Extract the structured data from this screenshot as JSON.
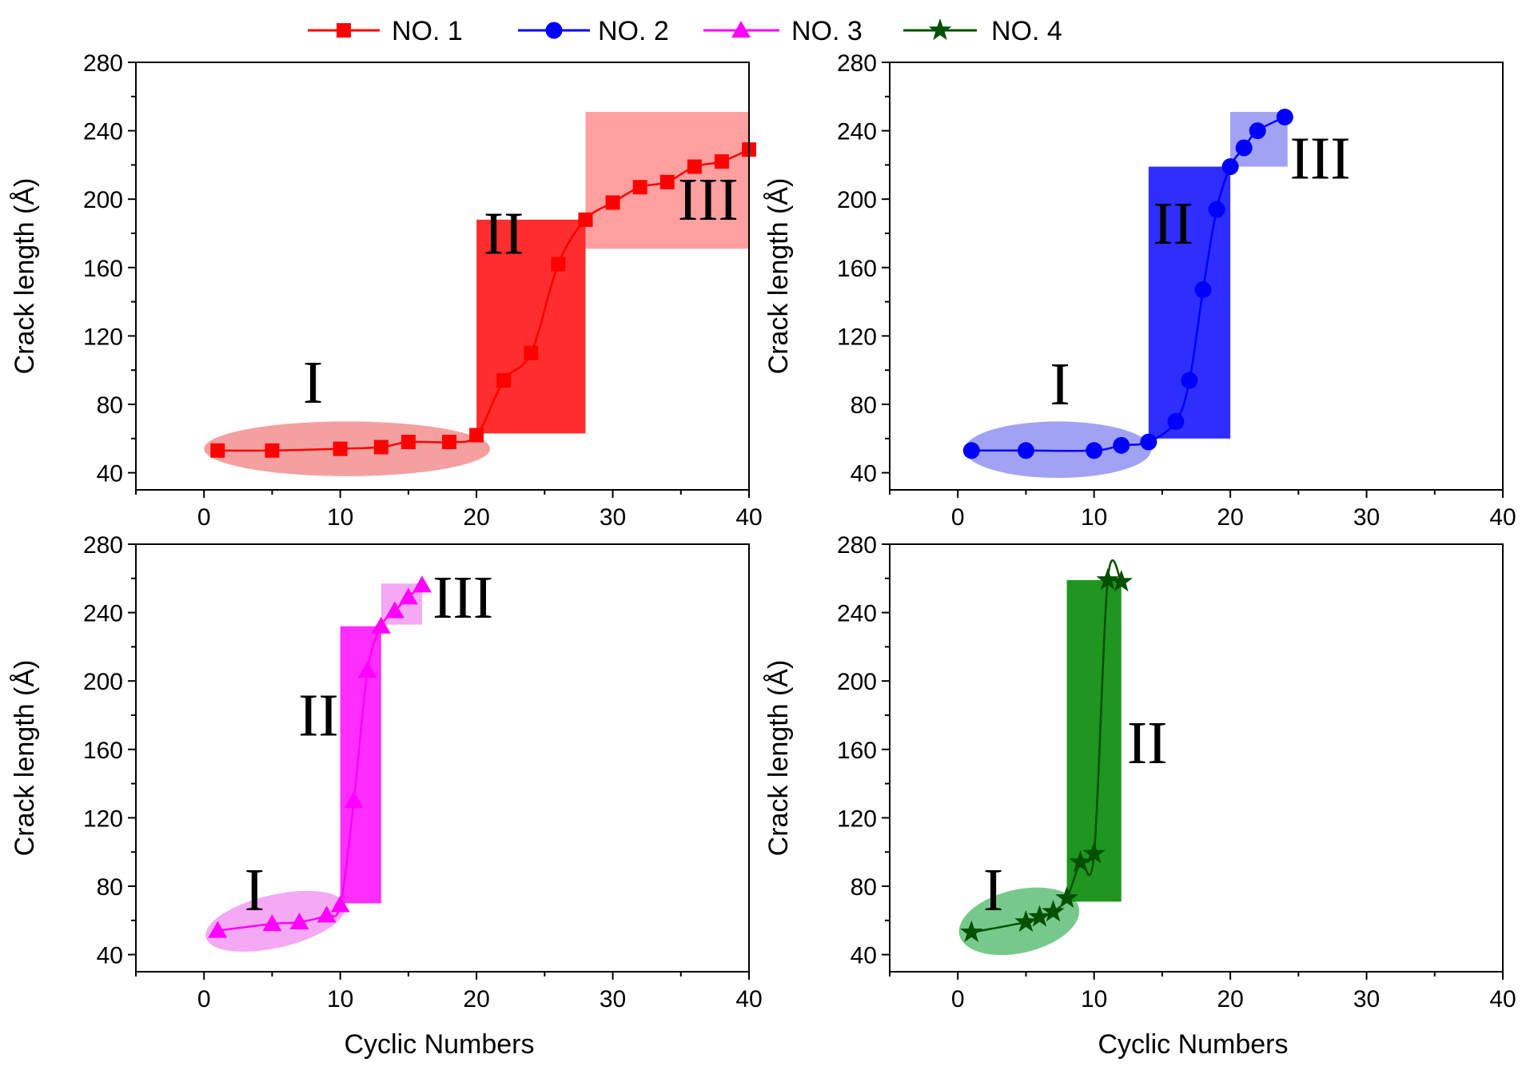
{
  "chart_data": [
    {
      "type": "line",
      "series_name": "NO. 1",
      "color": "#ff0000",
      "marker": "square",
      "x": [
        1,
        5,
        10,
        13,
        15,
        18,
        20,
        22,
        24,
        26,
        28,
        30,
        32,
        34,
        36,
        38,
        40
      ],
      "y": [
        53,
        53,
        54,
        55,
        58,
        58,
        62,
        94,
        110,
        162,
        188,
        198,
        207,
        210,
        219,
        222,
        229
      ],
      "xlabel": "",
      "ylabel": "Crack length (Å)",
      "xlim": [
        -5,
        40
      ],
      "ylim": [
        30,
        280
      ],
      "xticks": [
        0,
        10,
        20,
        30,
        40
      ],
      "yticks": [
        40,
        80,
        120,
        160,
        200,
        240,
        280
      ],
      "regions": [
        {
          "label": "I",
          "shape": "ellipse",
          "x_range": [
            0,
            21
          ],
          "y_range": [
            38,
            70
          ],
          "color": "#f08080",
          "opacity": 0.75
        },
        {
          "label": "II",
          "shape": "rect",
          "x_range": [
            20,
            28
          ],
          "y_range": [
            63,
            188
          ],
          "color": "#ff0000",
          "opacity": 0.82
        },
        {
          "label": "III",
          "shape": "rect",
          "x_range": [
            28,
            40
          ],
          "y_range": [
            171,
            251
          ],
          "color": "#ff6b6b",
          "opacity": 0.65
        }
      ]
    },
    {
      "type": "line",
      "series_name": "NO. 2",
      "color": "#0000ff",
      "marker": "circle",
      "x": [
        1,
        5,
        10,
        12,
        14,
        16,
        17,
        18,
        19,
        20,
        21,
        22,
        24
      ],
      "y": [
        53,
        53,
        53,
        56,
        58,
        70,
        94,
        147,
        194,
        219,
        230,
        240,
        248
      ],
      "xlabel": "",
      "ylabel": "Crack length (Å)",
      "xlim": [
        -5,
        40
      ],
      "ylim": [
        30,
        280
      ],
      "xticks": [
        0,
        10,
        20,
        30,
        40
      ],
      "yticks": [
        40,
        80,
        120,
        160,
        200,
        240,
        280
      ],
      "regions": [
        {
          "label": "I",
          "shape": "ellipse",
          "x_range": [
            0.5,
            14.2
          ],
          "y_range": [
            37,
            70
          ],
          "color": "#7b7bf0",
          "opacity": 0.7
        },
        {
          "label": "II",
          "shape": "rect",
          "x_range": [
            14,
            20
          ],
          "y_range": [
            60,
            219
          ],
          "color": "#0000ff",
          "opacity": 0.82
        },
        {
          "label": "III",
          "shape": "rect",
          "x_range": [
            20,
            24.2
          ],
          "y_range": [
            219,
            251
          ],
          "color": "#7b7bf0",
          "opacity": 0.7
        }
      ]
    },
    {
      "type": "line",
      "series_name": "NO. 3",
      "color": "#ff00ff",
      "marker": "triangle",
      "x": [
        1,
        5,
        7,
        9,
        10,
        11,
        12,
        13,
        14,
        15,
        16
      ],
      "y": [
        54,
        58,
        59,
        63,
        69,
        130,
        206,
        232,
        241,
        249,
        256
      ],
      "xlabel": "Cyclic Numbers",
      "ylabel": "Crack length (Å)",
      "xlim": [
        -5,
        40
      ],
      "ylim": [
        30,
        280
      ],
      "xticks": [
        0,
        10,
        20,
        30,
        40
      ],
      "yticks": [
        40,
        80,
        120,
        160,
        200,
        240,
        280
      ],
      "regions": [
        {
          "label": "I",
          "shape": "ellipse",
          "x_range": [
            0,
            10.5
          ],
          "y_range": [
            44,
            75
          ],
          "color": "#f08cf0",
          "opacity": 0.75
        },
        {
          "label": "II",
          "shape": "rect",
          "x_range": [
            10,
            13
          ],
          "y_range": [
            70,
            232
          ],
          "color": "#ff00ff",
          "opacity": 0.82
        },
        {
          "label": "III",
          "shape": "rect",
          "x_range": [
            13,
            16
          ],
          "y_range": [
            233,
            257
          ],
          "color": "#f08cf0",
          "opacity": 0.75
        }
      ]
    },
    {
      "type": "line",
      "series_name": "NO. 4",
      "color": "#005000",
      "marker": "star",
      "x": [
        1,
        5,
        6,
        7,
        8,
        9,
        10,
        11,
        12
      ],
      "y": [
        53,
        59,
        62,
        65,
        73,
        94,
        99,
        259,
        258
      ],
      "xlabel": "Cyclic Numbers",
      "ylabel": "Crack length (Å)",
      "xlim": [
        -5,
        40
      ],
      "ylim": [
        30,
        280
      ],
      "xticks": [
        0,
        10,
        20,
        30,
        40
      ],
      "yticks": [
        40,
        80,
        120,
        160,
        200,
        240,
        280
      ],
      "regions": [
        {
          "label": "I",
          "shape": "ellipse",
          "x_range": [
            0,
            9
          ],
          "y_range": [
            41,
            78
          ],
          "color": "#55bb6e",
          "opacity": 0.8
        },
        {
          "label": "II",
          "shape": "rect",
          "x_range": [
            8,
            12
          ],
          "y_range": [
            71,
            259
          ],
          "color": "#008800",
          "opacity": 0.88
        }
      ]
    }
  ],
  "legend": {
    "placement": "top-center",
    "entries": [
      {
        "label": "NO. 1",
        "color": "#ff0000",
        "marker": "square"
      },
      {
        "label": "NO. 2",
        "color": "#0000ff",
        "marker": "circle"
      },
      {
        "label": "NO. 3",
        "color": "#ff00ff",
        "marker": "triangle"
      },
      {
        "label": "NO. 4",
        "color": "#005000",
        "marker": "star"
      }
    ]
  }
}
